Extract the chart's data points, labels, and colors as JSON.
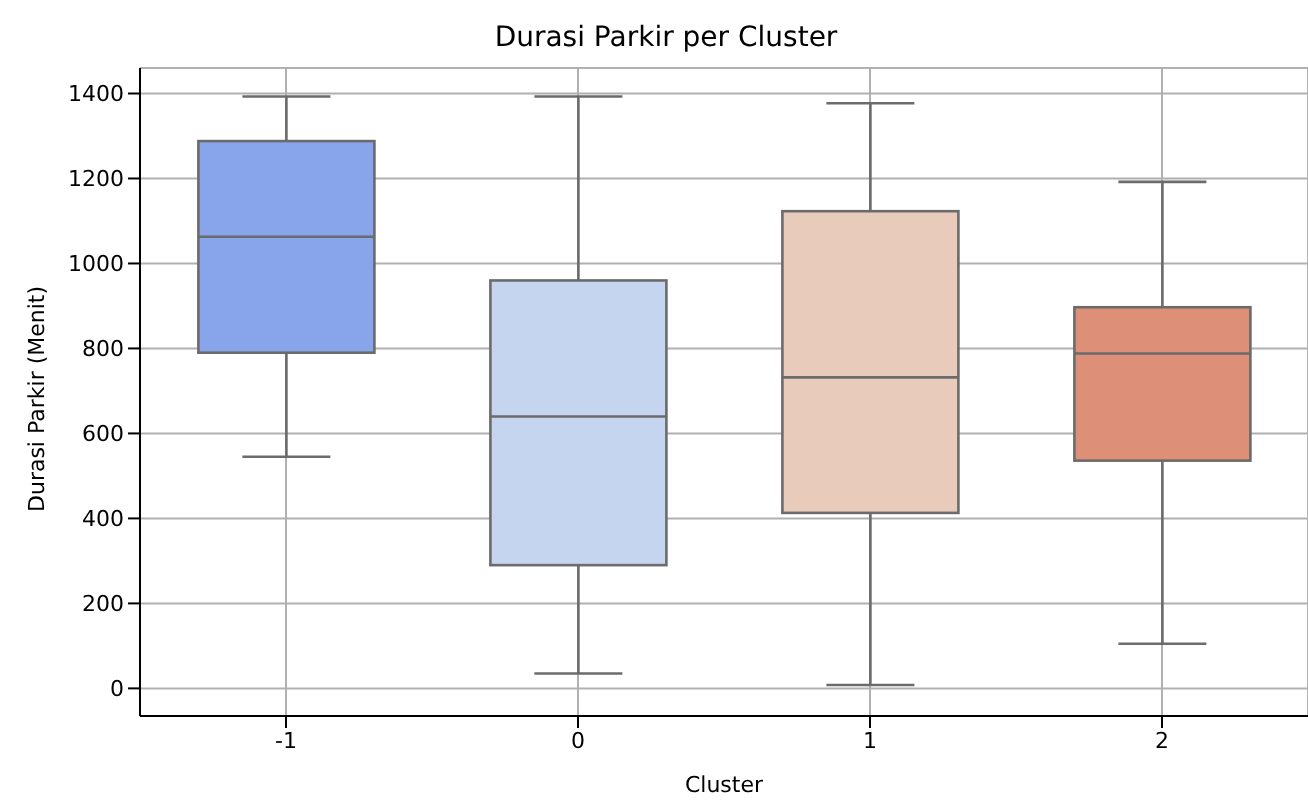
{
  "chart_data": {
    "type": "box",
    "title": "Durasi Parkir per Cluster",
    "xlabel": "Cluster",
    "ylabel": "Durasi Parkir (Menit)",
    "categories": [
      "-1",
      "0",
      "1",
      "2"
    ],
    "boxes": [
      {
        "low": 545,
        "q1": 790,
        "median": 1063,
        "q3": 1288,
        "high": 1393
      },
      {
        "low": 35,
        "q1": 290,
        "median": 640,
        "q3": 960,
        "high": 1393
      },
      {
        "low": 8,
        "q1": 413,
        "median": 732,
        "q3": 1123,
        "high": 1377
      },
      {
        "low": 105,
        "q1": 536,
        "median": 788,
        "q3": 897,
        "high": 1192
      }
    ],
    "colors": [
      "#88a4ea",
      "#c5d4ef",
      "#e9cbbb",
      "#de8f77"
    ],
    "ylim": [
      -65,
      1460
    ],
    "yticks": [
      0,
      200,
      400,
      600,
      800,
      1000,
      1200,
      1400
    ],
    "grid": true,
    "legend": false
  }
}
